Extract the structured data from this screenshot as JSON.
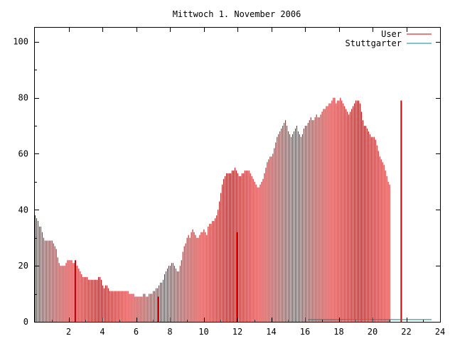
{
  "chart_data": {
    "type": "bar",
    "title": "Mittwoch 1. November 2006",
    "xlabel": "",
    "ylabel": "",
    "xlim": [
      0,
      24
    ],
    "ylim": [
      0,
      105
    ],
    "xticks": [
      "2",
      "4",
      "6",
      "8",
      "10",
      "12",
      "14",
      "16",
      "18",
      "20",
      "22",
      "24"
    ],
    "yticks": [
      "0",
      "20",
      "40",
      "60",
      "80",
      "100"
    ],
    "grid": false,
    "legend_position": "top-right",
    "series": [
      {
        "name": "User",
        "color": "#cc0000",
        "style": "impulses",
        "sample_step_hours": 0.0833,
        "values": [
          38,
          37,
          36,
          34,
          34,
          32,
          30,
          29,
          29,
          29,
          29,
          29,
          29,
          28,
          27,
          26,
          23,
          21,
          20,
          20,
          20,
          20,
          21,
          22,
          22,
          22,
          22,
          21,
          21,
          20,
          20,
          19,
          18,
          17,
          16,
          16,
          16,
          16,
          15,
          15,
          15,
          15,
          15,
          15,
          15,
          16,
          16,
          15,
          13,
          12,
          13,
          13,
          12,
          11,
          11,
          11,
          11,
          11,
          11,
          11,
          11,
          11,
          11,
          11,
          11,
          11,
          11,
          10,
          10,
          10,
          10,
          9,
          9,
          9,
          9,
          9,
          9,
          10,
          10,
          9,
          9,
          10,
          10,
          10,
          11,
          11,
          12,
          12,
          13,
          14,
          14,
          15,
          17,
          18,
          19,
          20,
          20,
          21,
          21,
          20,
          19,
          18,
          18,
          20,
          22,
          25,
          27,
          28,
          30,
          31,
          30,
          32,
          33,
          32,
          31,
          30,
          30,
          31,
          32,
          32,
          33,
          32,
          31,
          34,
          35,
          35,
          36,
          36,
          37,
          38,
          40,
          43,
          46,
          49,
          51,
          52,
          53,
          53,
          53,
          53,
          54,
          54,
          55,
          54,
          53,
          52,
          52,
          53,
          53,
          54,
          54,
          54,
          54,
          53,
          52,
          51,
          50,
          49,
          48,
          48,
          49,
          50,
          51,
          53,
          55,
          57,
          58,
          59,
          59,
          60,
          62,
          64,
          66,
          67,
          68,
          69,
          70,
          71,
          72,
          70,
          68,
          67,
          66,
          67,
          68,
          69,
          70,
          68,
          67,
          66,
          67,
          69,
          70,
          70,
          71,
          72,
          73,
          72,
          72,
          73,
          74,
          73,
          73,
          74,
          75,
          76,
          76,
          77,
          77,
          78,
          78,
          79,
          80,
          80,
          78,
          79,
          79,
          80,
          79,
          78,
          77,
          76,
          75,
          74,
          75,
          76,
          77,
          78,
          79,
          79,
          79,
          78,
          75,
          72,
          70,
          70,
          69,
          68,
          67,
          66,
          66,
          66,
          65,
          63,
          61,
          59,
          58,
          57,
          56,
          54,
          52,
          50,
          49
        ]
      },
      {
        "name": "Stuttgarter",
        "color": "#008b8b",
        "style": "line",
        "x": [
          16.2,
          23.5
        ],
        "values": [
          0.8,
          0.8
        ]
      }
    ],
    "highlight_bars": [
      {
        "x": 2.4,
        "value": 22
      },
      {
        "x": 7.3,
        "value": 9
      },
      {
        "x": 12.0,
        "value": 32
      },
      {
        "x": 21.7,
        "value": 79
      }
    ]
  }
}
